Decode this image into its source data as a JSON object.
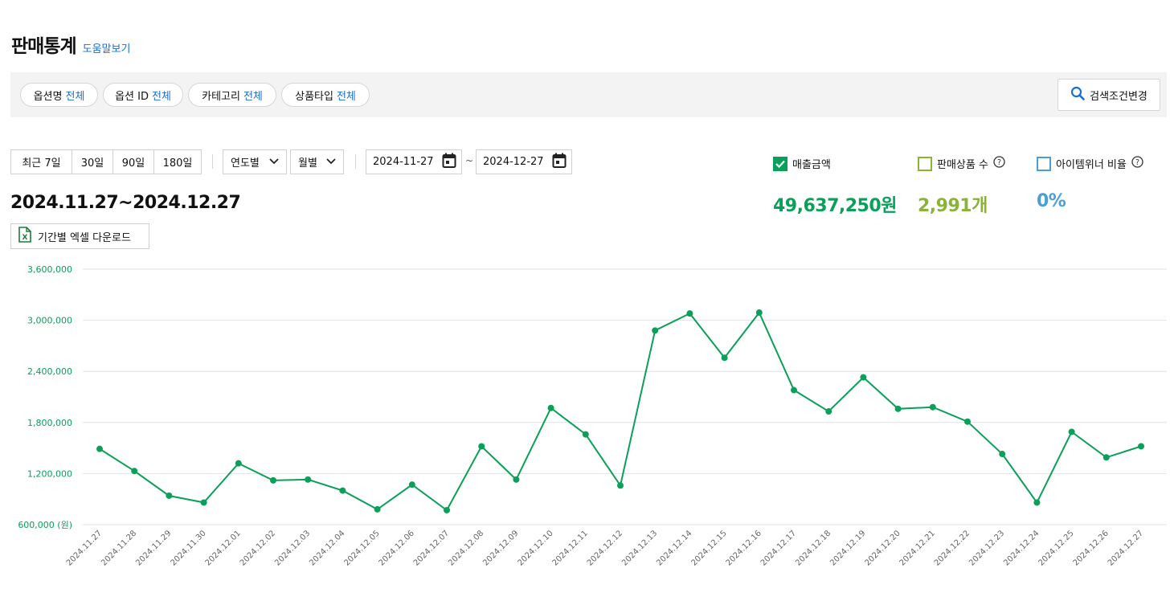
{
  "header": {
    "title": "판매통계",
    "help_link": "도움말보기"
  },
  "filters": {
    "chips": [
      {
        "label": "옵션명",
        "value": "전체"
      },
      {
        "label": "옵션 ID",
        "value": "전체"
      },
      {
        "label": "카테고리",
        "value": "전체"
      },
      {
        "label": "상품타입",
        "value": "전체"
      }
    ],
    "search_button": "검색조건변경"
  },
  "period": {
    "quick_buttons": [
      "최근 7일",
      "30일",
      "90일",
      "180일"
    ],
    "year_select": "연도별",
    "month_select": "월별",
    "start_date": "2024-11-27",
    "end_date": "2024-12-27",
    "separator": "~"
  },
  "range_title": "2024.11.27~2024.12.27",
  "excel_button": "기간별 엑셀 다운로드",
  "metrics": {
    "sales": {
      "label": "매출금액",
      "value": "49,637,250원",
      "checked": true,
      "color": "#0aa05a"
    },
    "items": {
      "label": "판매상품 수",
      "value": "2,991개",
      "checked": false,
      "color": "#8ab33a"
    },
    "winner": {
      "label": "아이템위너 비율",
      "value": "0%",
      "checked": false,
      "color": "#4a9fd8"
    }
  },
  "chart_data": {
    "type": "line",
    "x": [
      "2024.11.27",
      "2024.11.28",
      "2024.11.29",
      "2024.11.30",
      "2024.12.01",
      "2024.12.02",
      "2024.12.03",
      "2024.12.04",
      "2024.12.05",
      "2024.12.06",
      "2024.12.07",
      "2024.12.08",
      "2024.12.09",
      "2024.12.10",
      "2024.12.11",
      "2024.12.12",
      "2024.12.13",
      "2024.12.14",
      "2024.12.15",
      "2024.12.16",
      "2024.12.17",
      "2024.12.18",
      "2024.12.19",
      "2024.12.20",
      "2024.12.21",
      "2024.12.22",
      "2024.12.23",
      "2024.12.24",
      "2024.12.25",
      "2024.12.26",
      "2024.12.27"
    ],
    "values": [
      1490000,
      1230000,
      940000,
      860000,
      1320000,
      1120000,
      1130000,
      1000000,
      780000,
      1070000,
      770000,
      1520000,
      1130000,
      1970000,
      1660000,
      1060000,
      2880000,
      3080000,
      2560000,
      3090000,
      2180000,
      1930000,
      2330000,
      1960000,
      1980000,
      1810000,
      1430000,
      860000,
      1690000,
      1390000,
      1520000
    ],
    "yticks": [
      "3,600,000",
      "3,000,000",
      "2,400,000",
      "1,800,000",
      "1,200,000",
      "600,000 (원)"
    ],
    "ylim": [
      600000,
      3600000
    ],
    "color": "#0aa05a",
    "grid": true
  }
}
